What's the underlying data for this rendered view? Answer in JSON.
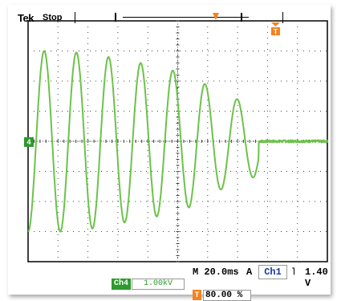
{
  "header": {
    "brand": "Tek",
    "acquisition_state": "Stop"
  },
  "channel_marker": "4",
  "trigger_icon_glyph": "T",
  "readouts": {
    "timebase": "M 20.0ms",
    "trigger_mode": "A",
    "trigger_source": "Ch1",
    "trigger_slope": "˥",
    "trigger_level": "1.40 V",
    "channel_label": "Ch4",
    "channel_scale": "1.00kV",
    "trigger_position": "80.00 %"
  },
  "colors": {
    "trace": "#6cc24a",
    "channel": "#2d9a2d",
    "trigger": "#f58220",
    "grid": "#444444"
  },
  "waveform": {
    "type": "damped-oscillation",
    "peak_divisions": [
      3.0,
      3.0,
      2.9,
      2.7,
      2.5,
      2.2,
      1.6,
      1.2,
      0.6,
      0.2
    ],
    "decay_end_division": 7.7,
    "cycles_per_division": 0.93,
    "noise_after_decay": true
  },
  "graticule": {
    "h_divisions": 10,
    "v_divisions": 8
  }
}
